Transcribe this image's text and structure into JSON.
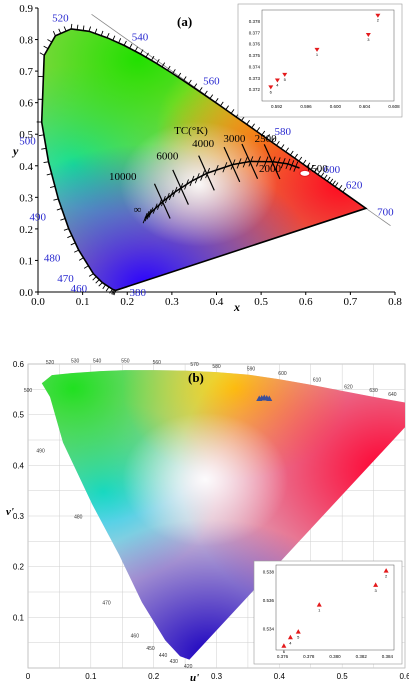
{
  "chart_data": [
    {
      "panel_label": "(a)",
      "type": "scatter",
      "xlabel": "x",
      "ylabel": "y",
      "xlim": [
        0.0,
        0.8
      ],
      "ylim": [
        0.0,
        0.9
      ],
      "xticks": [
        "0.0",
        "0.1",
        "0.2",
        "0.3",
        "0.4",
        "0.5",
        "0.6",
        "0.7",
        "0.8"
      ],
      "yticks": [
        "0.0",
        "0.1",
        "0.2",
        "0.3",
        "0.4",
        "0.5",
        "0.6",
        "0.7",
        "0.8",
        "0.9"
      ],
      "grid": false,
      "wavelength_labels": [
        "380",
        "460",
        "470",
        "480",
        "490",
        "500",
        "520",
        "540",
        "560",
        "580",
        "600",
        "620",
        "700"
      ],
      "planckian_label": "TC(°K)",
      "cct_labels": [
        "10000",
        "6000",
        "4000",
        "3000",
        "2500",
        "2000",
        "1500",
        "∞"
      ],
      "inset": {
        "xlim": [
          0.59,
          0.608
        ],
        "ylim": [
          0.371,
          0.379
        ],
        "xticks": [
          "0.592",
          "0.596",
          "0.600",
          "0.604",
          "0.608"
        ],
        "yticks": [
          "0.372",
          "0.373",
          "0.374",
          "0.375",
          "0.376",
          "0.377",
          "0.378"
        ],
        "points": [
          {
            "label": "1",
            "x": 0.5975,
            "y": 0.3755
          },
          {
            "label": "2",
            "x": 0.6058,
            "y": 0.3785
          },
          {
            "label": "3",
            "x": 0.6045,
            "y": 0.3768
          },
          {
            "label": "4",
            "x": 0.5921,
            "y": 0.3728
          },
          {
            "label": "5",
            "x": 0.5931,
            "y": 0.3733
          },
          {
            "label": "6",
            "x": 0.5912,
            "y": 0.3722
          }
        ],
        "marker_color": "#e41a1c"
      }
    },
    {
      "panel_label": "(b)",
      "type": "scatter",
      "xlabel": "u'",
      "ylabel": "v'",
      "xlim": [
        0.0,
        0.6
      ],
      "ylim": [
        0.0,
        0.6
      ],
      "xticks": [
        "0",
        "0.1",
        "0.2",
        "0.3",
        "0.4",
        "0.5",
        "0.6"
      ],
      "yticks": [
        "0.1",
        "0.2",
        "0.3",
        "0.4",
        "0.5",
        "0.6"
      ],
      "grid": true,
      "wavelength_labels": [
        "420",
        "430",
        "440",
        "450",
        "460",
        "470",
        "480",
        "490",
        "500",
        "520",
        "530",
        "540",
        "550",
        "560",
        "570",
        "580",
        "590",
        "600",
        "610",
        "620",
        "630",
        "640",
        "680"
      ],
      "inset": {
        "xlim": [
          0.3755,
          0.3845
        ],
        "ylim": [
          0.5325,
          0.5385
        ],
        "xticks": [
          "0.376",
          "0.378",
          "0.380",
          "0.382",
          "0.384"
        ],
        "yticks": [
          "0.534",
          "0.536",
          "0.538"
        ],
        "points": [
          {
            "label": "1",
            "x": 0.3788,
            "y": 0.5357
          },
          {
            "label": "2",
            "x": 0.3839,
            "y": 0.5381
          },
          {
            "label": "3",
            "x": 0.3831,
            "y": 0.5371
          },
          {
            "label": "4",
            "x": 0.3766,
            "y": 0.5334
          },
          {
            "label": "5",
            "x": 0.3772,
            "y": 0.5338
          },
          {
            "label": "6",
            "x": 0.3761,
            "y": 0.5328
          }
        ],
        "marker_color": "#e41a1c"
      }
    }
  ]
}
